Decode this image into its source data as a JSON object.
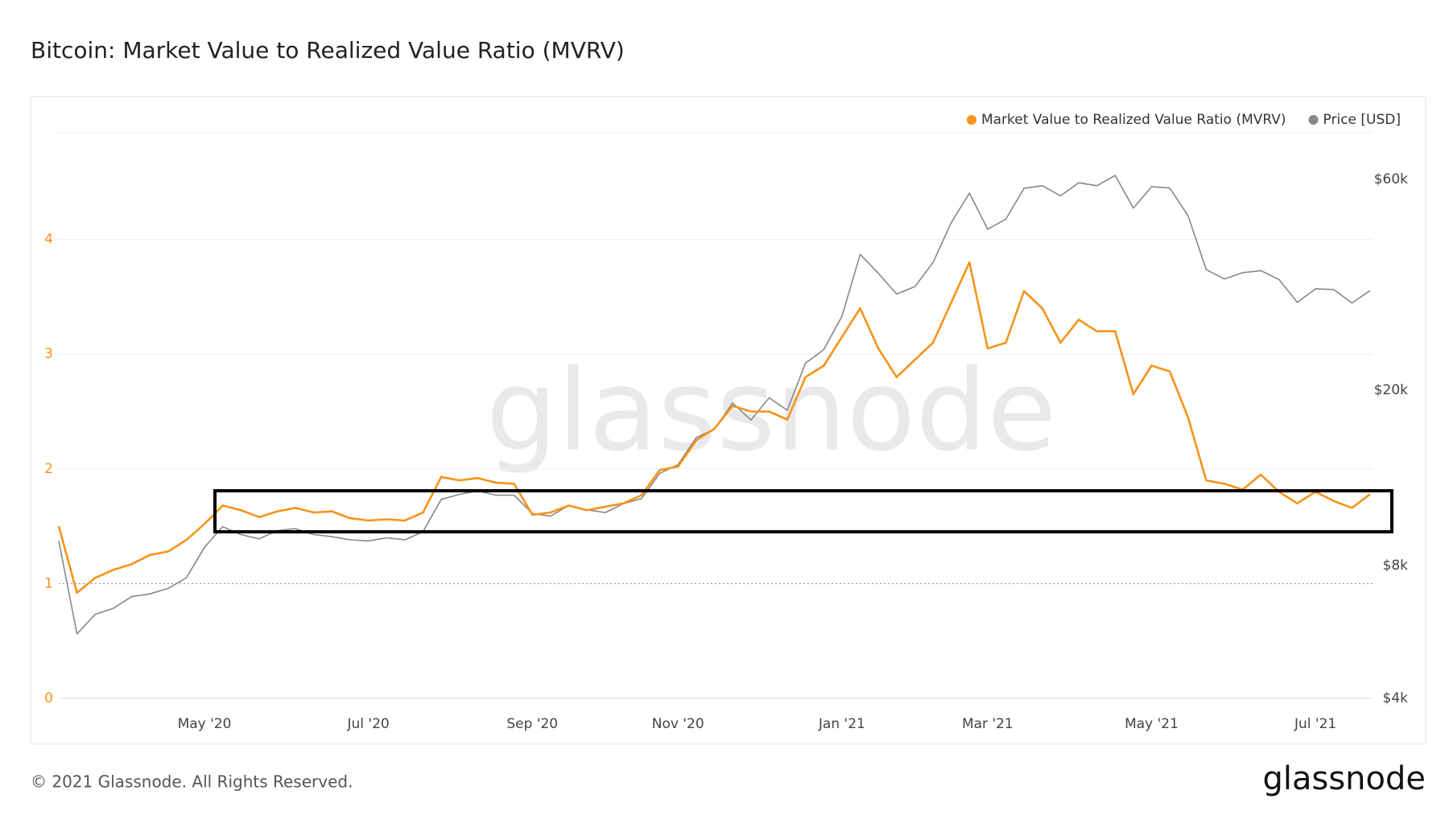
{
  "chart_data": {
    "type": "line",
    "title": "Bitcoin: Market Value to Realized Value Ratio (MVRV)",
    "watermark": "glassnode",
    "footer": "© 2021 Glassnode. All Rights Reserved.",
    "logo": "glassnode",
    "categories": [
      null,
      null,
      null,
      null,
      null,
      null,
      null,
      null,
      "May '20",
      null,
      null,
      null,
      null,
      null,
      null,
      null,
      null,
      "Jul '20",
      null,
      null,
      null,
      null,
      null,
      null,
      null,
      null,
      "Sep '20",
      null,
      null,
      null,
      null,
      null,
      null,
      null,
      "Nov '20",
      null,
      null,
      null,
      null,
      null,
      null,
      null,
      null,
      "Jan '21",
      null,
      null,
      null,
      null,
      null,
      null,
      null,
      "Mar '21",
      null,
      null,
      null,
      null,
      null,
      null,
      null,
      null,
      "May '21",
      null,
      null,
      null,
      null,
      null,
      null,
      null,
      null,
      "Jul '21",
      null,
      null,
      null
    ],
    "series": [
      {
        "name": "Market Value to Realized Value Ratio (MVRV)",
        "color": "#f7931a",
        "axis": "y",
        "values": [
          1.5,
          0.92,
          1.05,
          1.12,
          1.17,
          1.25,
          1.28,
          1.38,
          1.52,
          1.68,
          1.64,
          1.58,
          1.63,
          1.66,
          1.62,
          1.63,
          1.57,
          1.55,
          1.56,
          1.55,
          1.62,
          1.93,
          1.9,
          1.92,
          1.88,
          1.87,
          1.6,
          1.62,
          1.68,
          1.64,
          1.67,
          1.7,
          1.77,
          1.99,
          2.02,
          2.25,
          2.35,
          2.55,
          2.5,
          2.5,
          2.43,
          2.8,
          2.9,
          3.15,
          3.4,
          3.05,
          2.8,
          2.95,
          3.1,
          3.45,
          3.8,
          3.05,
          3.1,
          3.55,
          3.4,
          3.1,
          3.3,
          3.2,
          3.2,
          2.65,
          2.9,
          2.85,
          2.45,
          1.9,
          1.87,
          1.82,
          1.95,
          1.8,
          1.7,
          1.8,
          1.72,
          1.66,
          1.78
        ]
      },
      {
        "name": "Price [USD]",
        "color": "#888888",
        "axis": "y2",
        "values": [
          9100,
          5600,
          6200,
          6400,
          6800,
          6900,
          7100,
          7500,
          8800,
          9800,
          9400,
          9200,
          9600,
          9700,
          9400,
          9300,
          9150,
          9100,
          9250,
          9150,
          9550,
          11300,
          11600,
          11800,
          11550,
          11550,
          10500,
          10350,
          10950,
          10700,
          10550,
          11050,
          11350,
          12950,
          13550,
          15600,
          16300,
          18700,
          17100,
          19200,
          18000,
          23000,
          24700,
          29400,
          40600,
          36800,
          33000,
          34300,
          38900,
          47900,
          55900,
          46300,
          48800,
          57300,
          58100,
          55100,
          59000,
          58100,
          61300,
          51700,
          57800,
          57400,
          49700,
          37500,
          35700,
          36900,
          37300,
          35600,
          31600,
          33900,
          33800,
          31500,
          33600
        ]
      }
    ],
    "ylim": [
      0,
      4.93
    ],
    "yticks": [
      0,
      1,
      2,
      3,
      4
    ],
    "y2lim": [
      4000,
      76600
    ],
    "y2scale": "log",
    "y2ticks": [
      {
        "value": 4000,
        "label": "$4k"
      },
      {
        "value": 8000,
        "label": "$8k"
      },
      {
        "value": 20000,
        "label": "$20k"
      },
      {
        "value": 60000,
        "label": "$60k"
      }
    ],
    "grid": true,
    "legend": "top-right"
  }
}
